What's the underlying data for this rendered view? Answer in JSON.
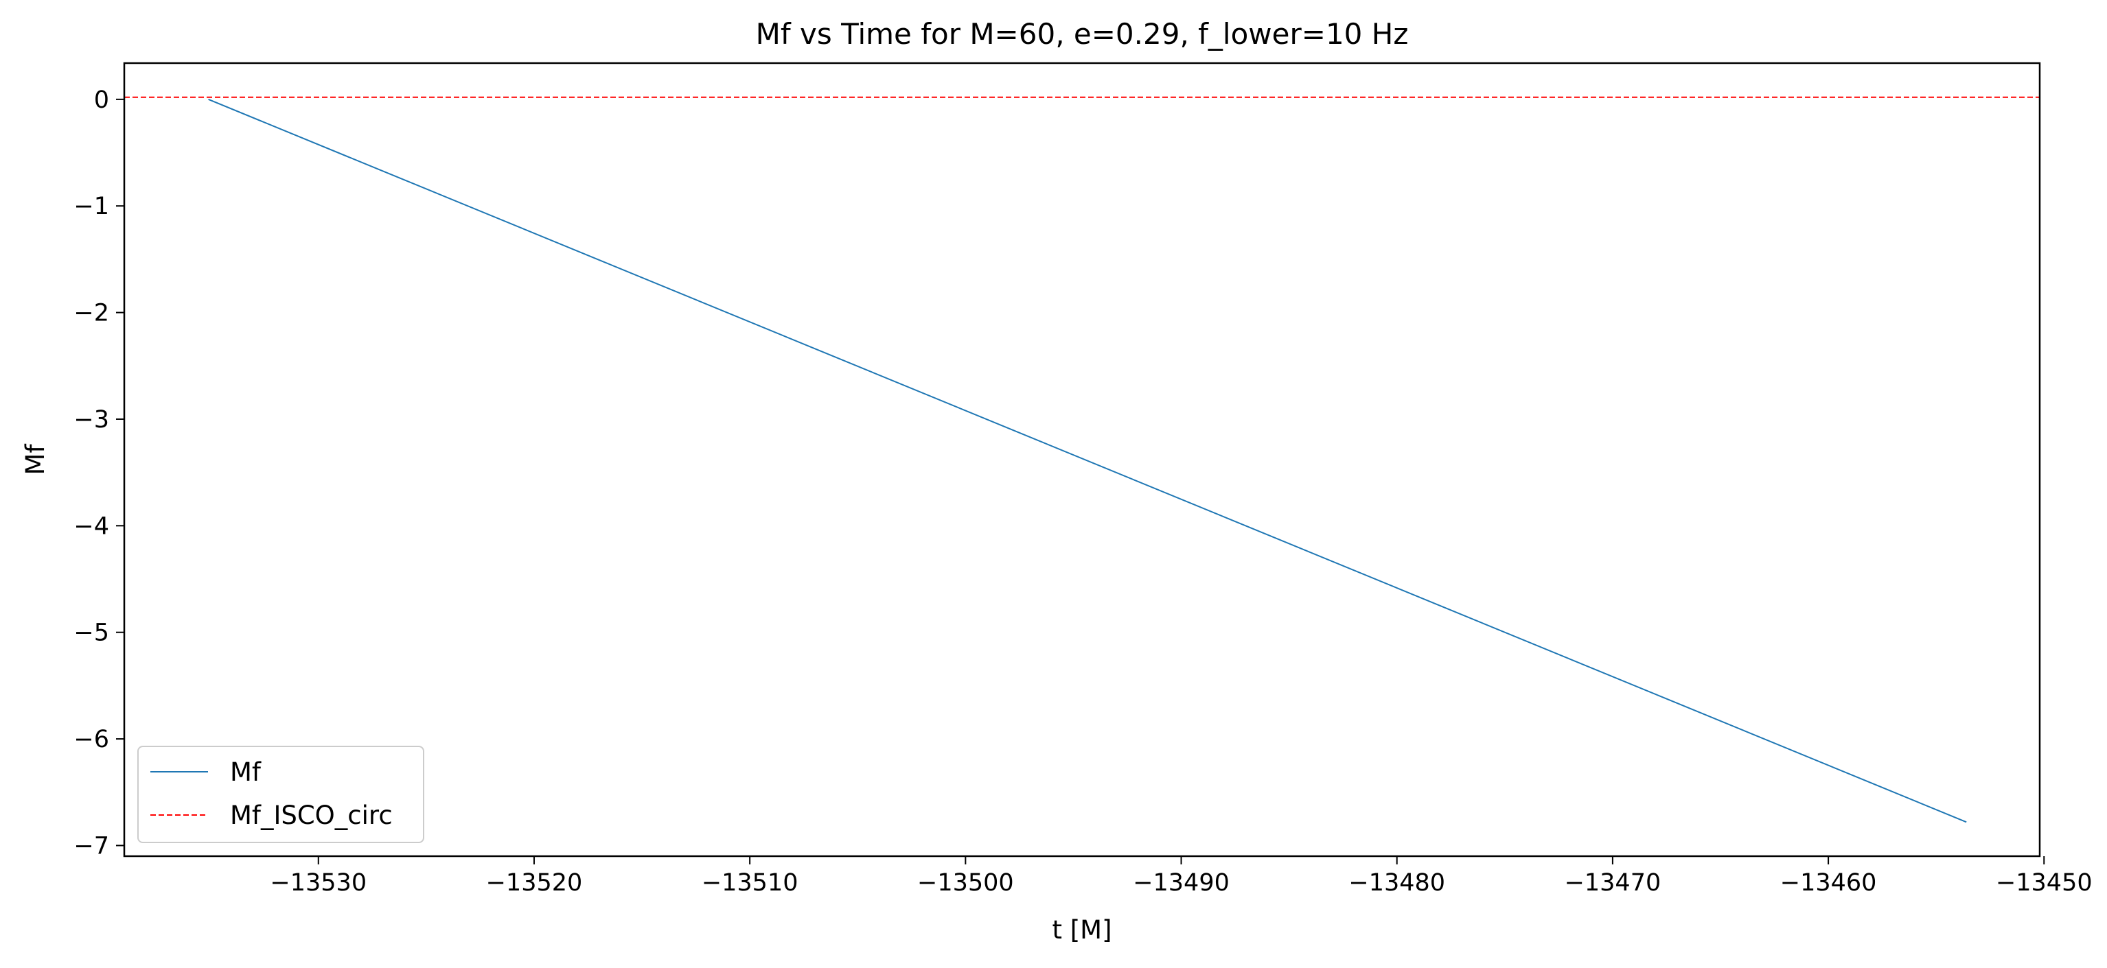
{
  "chart_data": {
    "type": "line",
    "title": "Mf vs Time for M=60, e=0.29, f_lower=10 Hz",
    "xlabel": "t [M]",
    "ylabel": "Mf",
    "xlim": [
      -13539.0,
      -13450.2
    ],
    "ylim": [
      -7.1,
      0.34
    ],
    "xticks": [
      -13530,
      -13520,
      -13510,
      -13500,
      -13490,
      -13480,
      -13470,
      -13460,
      -13450
    ],
    "xtick_labels": [
      "−13530",
      "−13520",
      "−13510",
      "−13500",
      "−13490",
      "−13480",
      "−13470",
      "−13460",
      "−13450"
    ],
    "yticks": [
      0,
      -1,
      -2,
      -3,
      -4,
      -5,
      -6,
      -7
    ],
    "ytick_labels": [
      "0",
      "−1",
      "−2",
      "−3",
      "−4",
      "−5",
      "−6",
      "−7"
    ],
    "grid": false,
    "legend_position": "lower-left",
    "series": [
      {
        "name": "Mf",
        "color": "#1f77b4",
        "style": "solid",
        "x": [
          -13535.1,
          -13453.6
        ],
        "y": [
          0.0,
          -6.78
        ]
      },
      {
        "name": "Mf_ISCO_circ",
        "color": "#ff0000",
        "style": "dashed",
        "kind": "hline",
        "y": 0.02
      }
    ]
  }
}
